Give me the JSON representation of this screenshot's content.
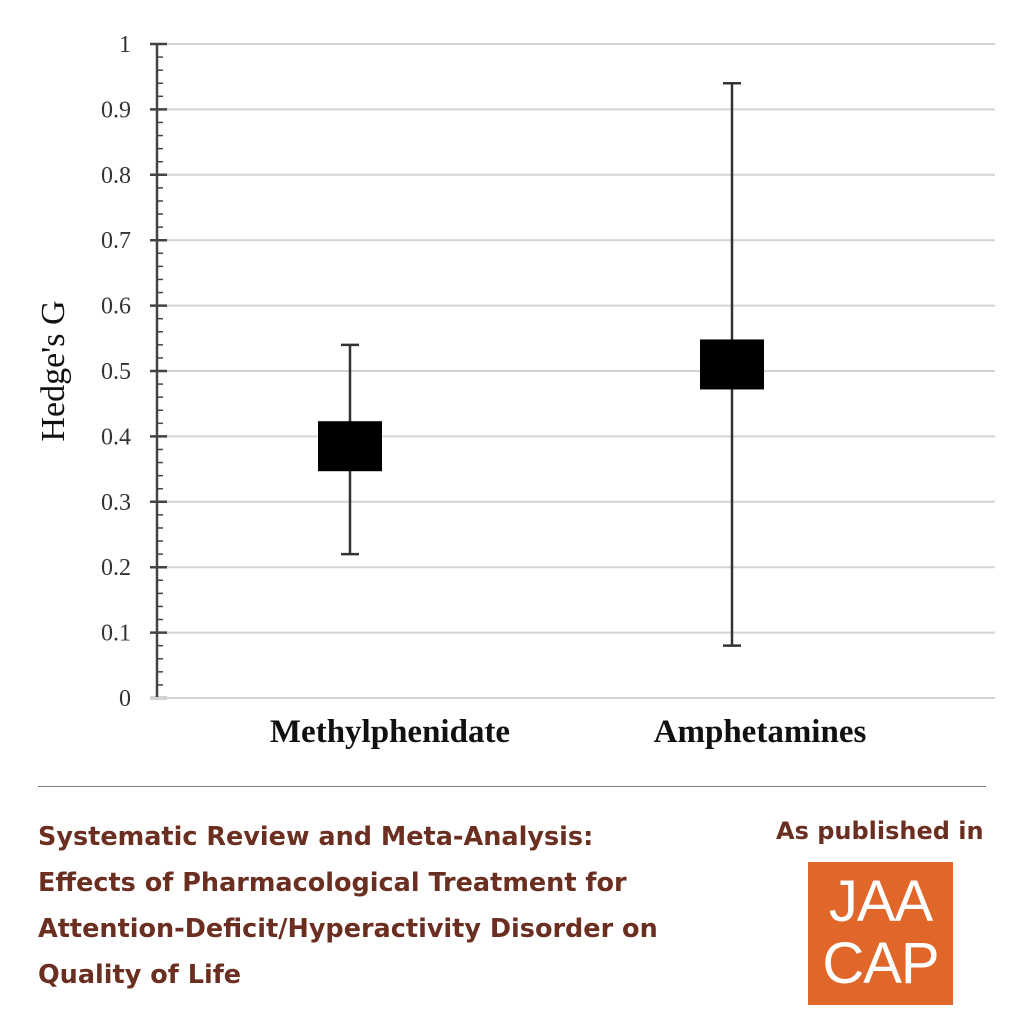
{
  "chart_data": {
    "type": "scatter",
    "subtype": "point-estimate-with-error-bars",
    "title": "",
    "xlabel": "",
    "ylabel": "Hedge's G",
    "categories": [
      "Methylphenidate",
      "Amphetamines"
    ],
    "series": [
      {
        "values": [
          0.385,
          0.51
        ],
        "ci_low": [
          0.22,
          0.08
        ],
        "ci_high": [
          0.54,
          0.94
        ]
      }
    ],
    "ylim": [
      0,
      1
    ],
    "yticks": [
      "0",
      "0.1",
      "0.2",
      "0.3",
      "0.4",
      "0.5",
      "0.6",
      "0.7",
      "0.8",
      "0.9",
      "1"
    ],
    "grid": true,
    "legend": "none",
    "colors": {
      "marker": "#000000",
      "whisker": "#333333",
      "grid": "#d4d4d4",
      "axis": "#444444"
    }
  },
  "footer": {
    "title_lines": [
      "Systematic Review and Meta-Analysis:",
      "Effects of Pharmacological Treatment for",
      "Attention-Deficit/Hyperactivity Disorder on",
      "Quality of Life"
    ],
    "published_label": "As published in",
    "journal_logo_lines": [
      "JAA",
      "CAP"
    ],
    "colors": {
      "title_text": "#6b2f22",
      "logo_background": "#e0662a",
      "logo_text": "#ffffff"
    }
  }
}
